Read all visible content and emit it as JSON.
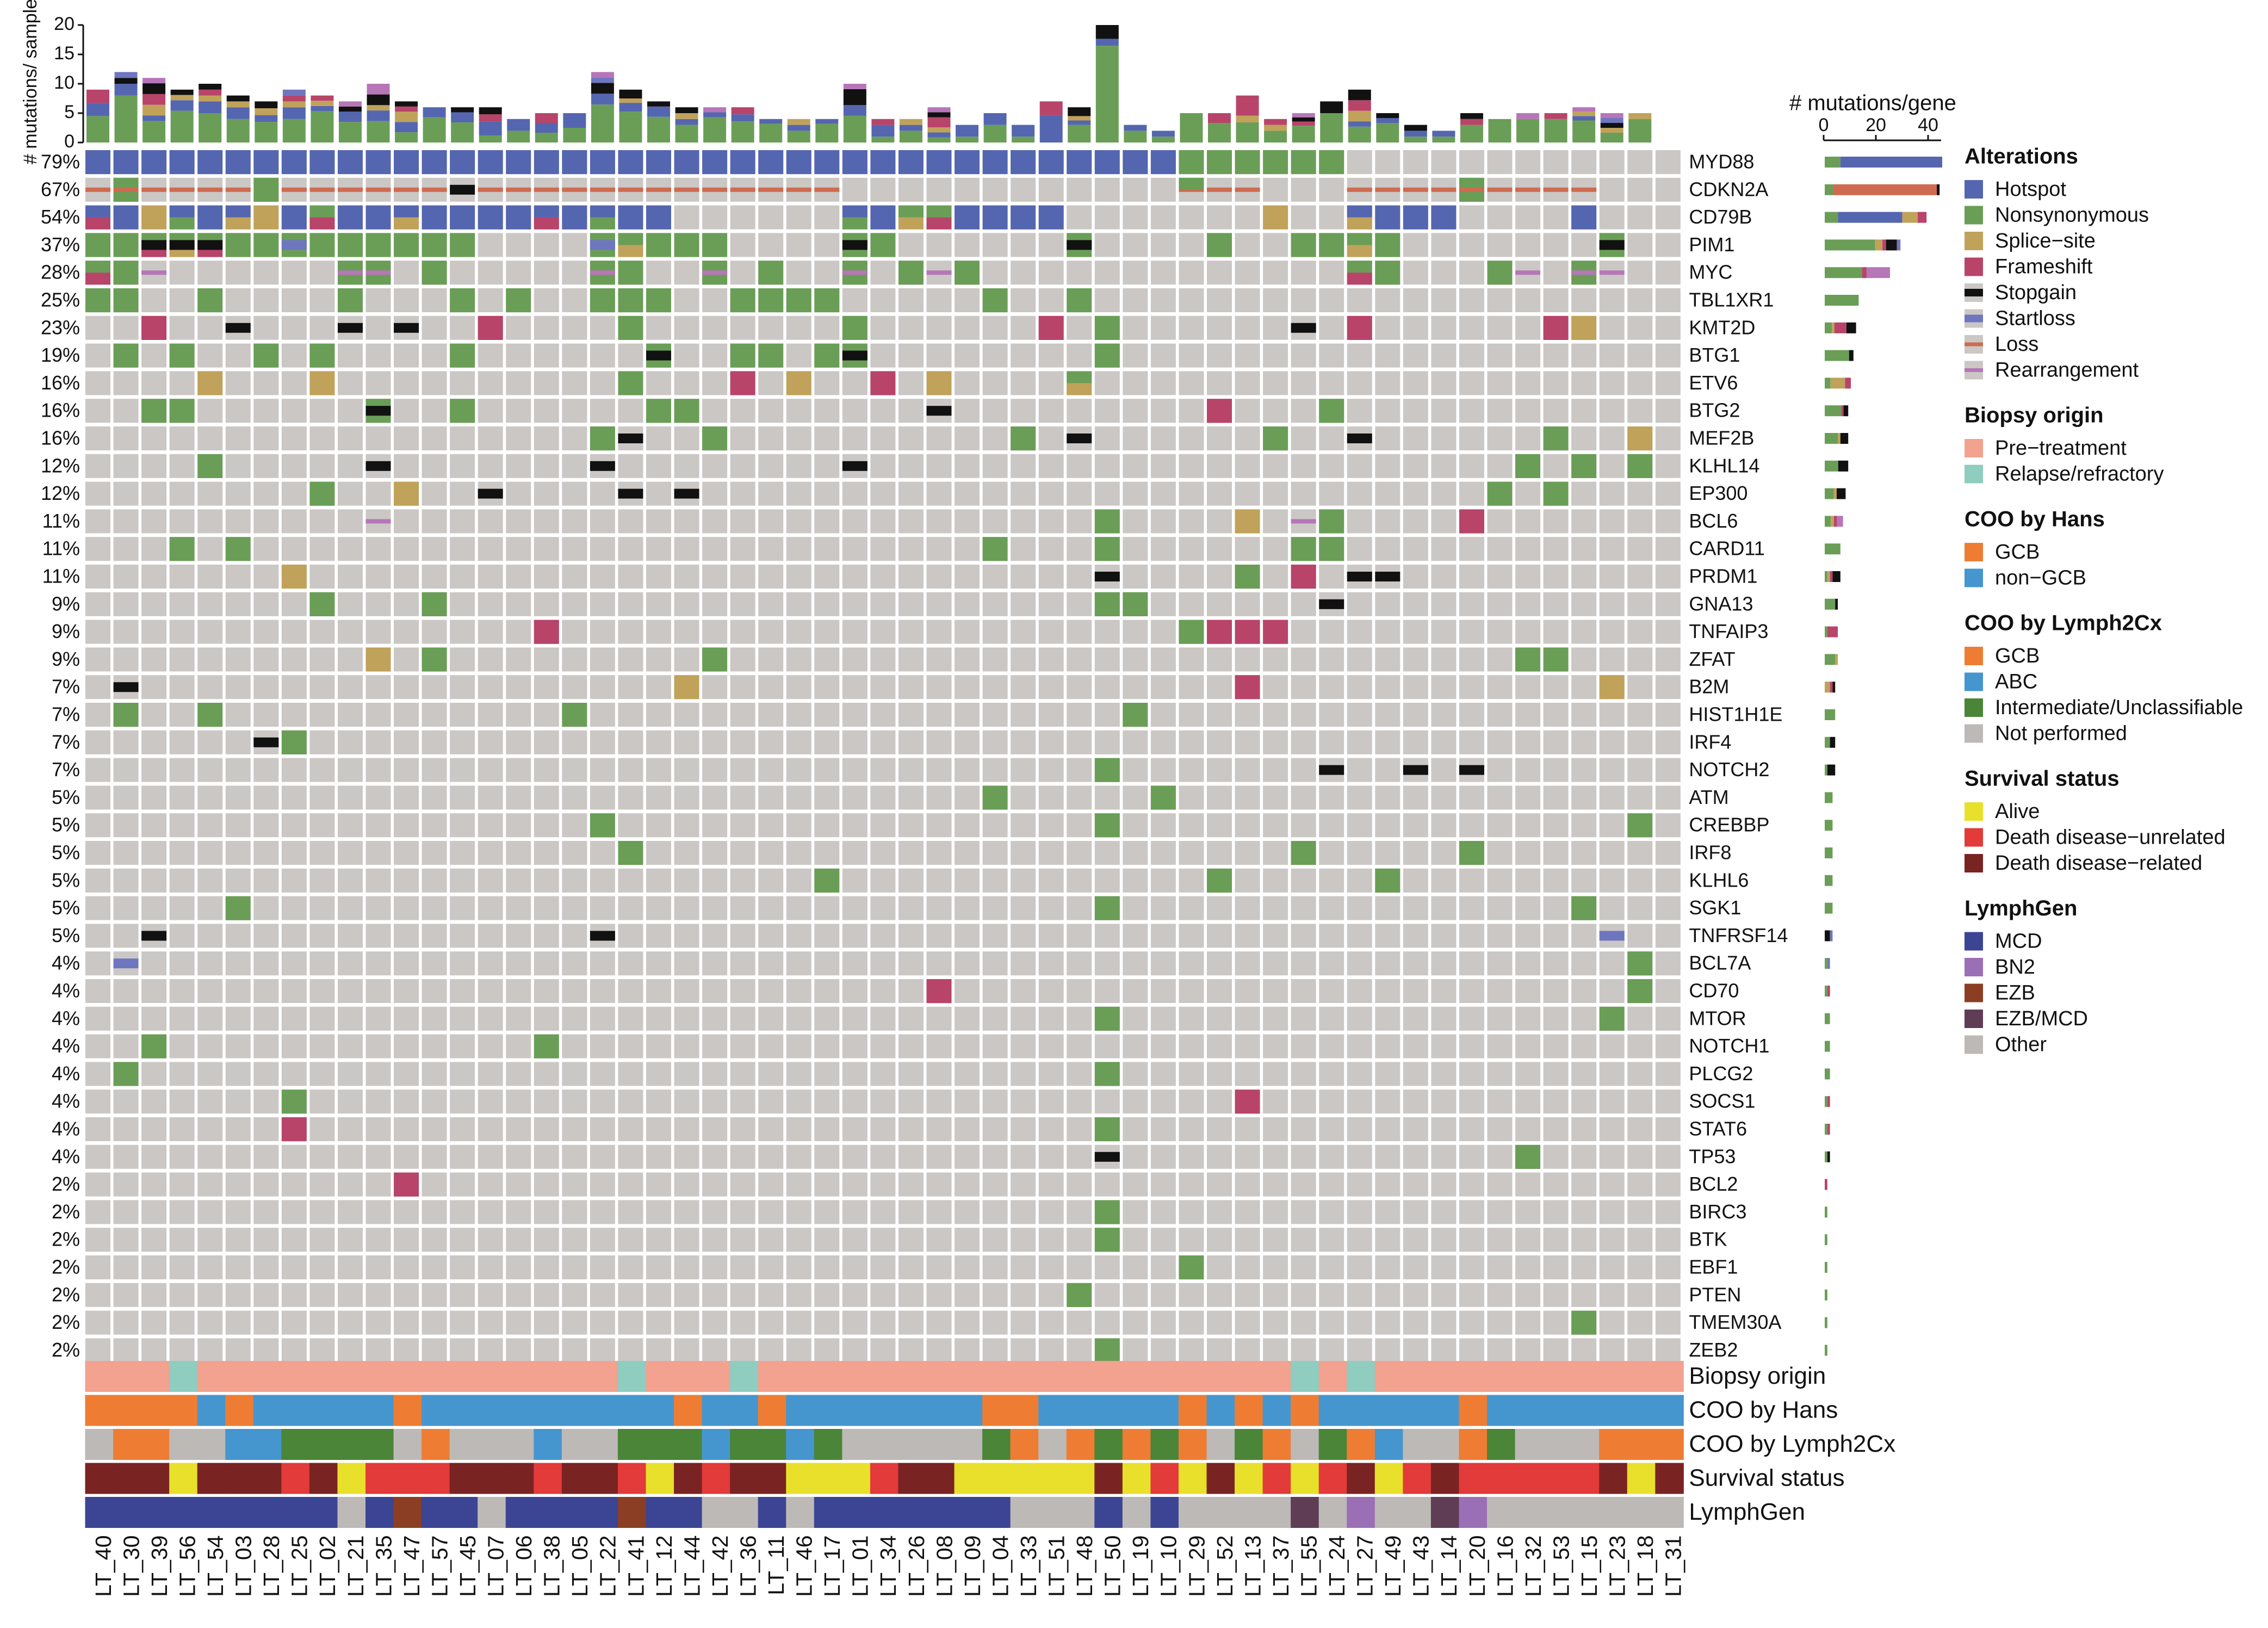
{
  "chart_data": {
    "type": "oncoprint",
    "title": "",
    "samples": [
      "LT_40",
      "LT_30",
      "LT_39",
      "LT_56",
      "LT_54",
      "LT_03",
      "LT_28",
      "LT_25",
      "LT_02",
      "LT_21",
      "LT_35",
      "LT_47",
      "LT_57",
      "LT_45",
      "LT_07",
      "LT_06",
      "LT_38",
      "LT_05",
      "LT_22",
      "LT_41",
      "LT_12",
      "LT_44",
      "LT_42",
      "LT_36",
      "LT_11",
      "LT_46",
      "LT_17",
      "LT_01",
      "LT_34",
      "LT_26",
      "LT_08",
      "LT_09",
      "LT_04",
      "LT_33",
      "LT_51",
      "LT_48",
      "LT_50",
      "LT_19",
      "LT_10",
      "LT_29",
      "LT_52",
      "LT_13",
      "LT_37",
      "LT_55",
      "LT_24",
      "LT_27",
      "LT_49",
      "LT_43",
      "LT_14",
      "LT_20",
      "LT_16",
      "LT_32",
      "LT_53",
      "LT_15",
      "LT_23",
      "LT_18",
      "LT_31"
    ],
    "genes": [
      "MYD88",
      "CDKN2A",
      "CD79B",
      "PIM1",
      "MYC",
      "TBL1XR1",
      "KMT2D",
      "BTG1",
      "ETV6",
      "BTG2",
      "MEF2B",
      "KLHL14",
      "EP300",
      "BCL6",
      "CARD11",
      "PRDM1",
      "GNA13",
      "TNFAIP3",
      "ZFAT",
      "B2M",
      "HIST1H1E",
      "IRF4",
      "NOTCH2",
      "ATM",
      "CREBBP",
      "IRF8",
      "KLHL6",
      "SGK1",
      "TNFRSF14",
      "BCL7A",
      "CD70",
      "MTOR",
      "NOTCH1",
      "PLCG2",
      "SOCS1",
      "STAT6",
      "TP53",
      "BCL2",
      "BIRC3",
      "BTK",
      "EBF1",
      "PTEN",
      "TMEM30A",
      "ZEB2"
    ],
    "percentages": [
      "79%",
      "67%",
      "54%",
      "37%",
      "28%",
      "25%",
      "23%",
      "19%",
      "16%",
      "16%",
      "16%",
      "12%",
      "12%",
      "11%",
      "11%",
      "11%",
      "9%",
      "9%",
      "9%",
      "7%",
      "7%",
      "7%",
      "7%",
      "5%",
      "5%",
      "5%",
      "5%",
      "5%",
      "5%",
      "4%",
      "4%",
      "4%",
      "4%",
      "4%",
      "4%",
      "4%",
      "4%",
      "2%",
      "2%",
      "2%",
      "2%",
      "2%",
      "2%",
      "2%"
    ],
    "alteration_types": [
      "Hotspot",
      "Nonsynonymous",
      "Splice-site",
      "Frameshift",
      "Stopgain",
      "Startloss",
      "Loss",
      "Rearrangement"
    ],
    "alteration_colors": {
      "H": "#5566b0",
      "N": "#6a9e57",
      "S": "#c0a25a",
      "F": "#b8446a",
      "G": "#111111",
      "T": "#6f76c0",
      "L": "#cf6b50",
      "R": "#b676b8"
    },
    "alterations": {
      "MYD88": {
        "H": [
          0,
          1,
          2,
          3,
          4,
          5,
          6,
          7,
          8,
          9,
          10,
          11,
          12,
          13,
          14,
          15,
          16,
          17,
          18,
          19,
          20,
          21,
          22,
          23,
          24,
          25,
          26,
          27,
          28,
          29,
          30,
          31,
          32,
          33,
          34,
          35,
          36,
          37,
          38
        ],
        "N": [
          39,
          40,
          41,
          42,
          43,
          44
        ]
      },
      "CDKN2A": {
        "L": [
          0,
          1,
          2,
          3,
          4,
          5,
          7,
          8,
          9,
          10,
          11,
          12,
          14,
          15,
          16,
          17,
          18,
          19,
          20,
          21,
          22,
          23,
          24,
          25,
          26,
          39,
          40,
          41,
          45,
          46,
          47,
          48,
          49,
          50,
          51,
          52,
          53
        ],
        "N": [
          1,
          6,
          49
        ],
        "G": [
          13
        ],
        "RN": [
          39
        ]
      },
      "CD79B": {
        "H": [
          0,
          1,
          3,
          4,
          5,
          7,
          9,
          10,
          11,
          12,
          13,
          14,
          15,
          16,
          17,
          18,
          19,
          20,
          27,
          28,
          31,
          32,
          33,
          34,
          45,
          46,
          47,
          48,
          53
        ],
        "F": [
          0,
          8,
          16,
          30
        ],
        "S": [
          2,
          5,
          6,
          11,
          29,
          42,
          45
        ],
        "N": [
          3,
          8,
          18,
          27,
          29,
          30
        ]
      },
      "PIM1": {
        "N": [
          0,
          1,
          2,
          3,
          4,
          5,
          6,
          7,
          8,
          9,
          10,
          11,
          12,
          13,
          18,
          19,
          20,
          21,
          22,
          27,
          28,
          35,
          40,
          43,
          44,
          45,
          46,
          54
        ],
        "G": [
          2,
          3,
          4,
          27,
          35,
          54
        ],
        "F": [
          2,
          4
        ],
        "S": [
          2,
          3,
          19,
          45
        ],
        "T": [
          7,
          18
        ]
      },
      "MYC": {
        "N": [
          0,
          1,
          9,
          10,
          12,
          18,
          19,
          22,
          24,
          27,
          29,
          31,
          45,
          46,
          50,
          53
        ],
        "R": [
          2,
          9,
          10,
          18,
          22,
          27,
          30,
          51,
          53,
          54
        ],
        "F": [
          0,
          45
        ]
      },
      "TBL1XR1": {
        "N": [
          0,
          1,
          4,
          9,
          13,
          15,
          18,
          19,
          20,
          23,
          24,
          25,
          26,
          32,
          35
        ]
      },
      "KMT2D": {
        "F": [
          2,
          14,
          34,
          45,
          52
        ],
        "G": [
          5,
          9,
          11,
          43
        ],
        "N": [
          19,
          27,
          36
        ],
        "S": [
          53
        ]
      },
      "BTG1": {
        "N": [
          1,
          3,
          6,
          8,
          13,
          20,
          23,
          24,
          26,
          27,
          36
        ],
        "G": [
          20,
          27
        ]
      },
      "ETV6": {
        "S": [
          4,
          8,
          25,
          30,
          35
        ],
        "N": [
          19,
          35
        ],
        "F": [
          23,
          28
        ]
      },
      "BTG2": {
        "N": [
          2,
          3,
          10,
          13,
          20,
          21,
          44
        ],
        "G": [
          10,
          30
        ],
        "F": [
          40
        ]
      },
      "MEF2B": {
        "N": [
          18,
          22,
          33,
          42,
          52
        ],
        "G": [
          19,
          35,
          45
        ],
        "S": [
          55
        ]
      },
      "KLHL14": {
        "N": [
          4,
          51,
          53,
          55
        ],
        "G": [
          10,
          18,
          27
        ]
      },
      "EP300": {
        "N": [
          8,
          50,
          52
        ],
        "S": [
          11
        ],
        "G": [
          14,
          19,
          21
        ]
      },
      "BCL6": {
        "N": [
          36,
          44
        ],
        "S": [
          41
        ],
        "R": [
          10,
          43
        ],
        "F": [
          49
        ]
      },
      "CARD11": {
        "N": [
          3,
          5,
          32,
          36,
          43,
          44
        ]
      },
      "PRDM1": {
        "S": [
          7
        ],
        "N": [
          41
        ],
        "G": [
          36,
          45,
          46
        ],
        "F": [
          43
        ]
      },
      "GNA13": {
        "N": [
          8,
          12,
          36,
          37
        ],
        "G": [
          44
        ]
      },
      "TNFAIP3": {
        "F": [
          16,
          40,
          41,
          42
        ],
        "N": [
          39
        ]
      },
      "ZFAT": {
        "S": [
          10
        ],
        "N": [
          12,
          22,
          51,
          52
        ]
      },
      "B2M": {
        "G": [
          1
        ],
        "S": [
          21,
          54
        ],
        "F": [
          41
        ]
      },
      "HIST1H1E": {
        "N": [
          1,
          4,
          17,
          37
        ]
      },
      "IRF4": {
        "G": [
          6
        ],
        "N": [
          7
        ]
      },
      "NOTCH2": {
        "N": [
          36
        ],
        "G": [
          44,
          47,
          49
        ]
      },
      "ATM": {
        "N": [
          32,
          38
        ]
      },
      "CREBBP": {
        "N": [
          18,
          36,
          55
        ]
      },
      "IRF8": {
        "N": [
          19,
          43,
          49
        ]
      },
      "KLHL6": {
        "N": [
          26,
          40,
          46
        ]
      },
      "SGK1": {
        "N": [
          5,
          36,
          53
        ]
      },
      "TNFRSF14": {
        "G": [
          2,
          18
        ],
        "T": [
          54
        ]
      },
      "BCL7A": {
        "T": [
          1
        ],
        "N": [
          55
        ]
      },
      "CD70": {
        "F": [
          30
        ],
        "N": [
          55
        ]
      },
      "MTOR": {
        "N": [
          36,
          54
        ]
      },
      "NOTCH1": {
        "N": [
          2,
          16
        ]
      },
      "PLCG2": {
        "N": [
          1,
          36
        ]
      },
      "SOCS1": {
        "N": [
          7
        ],
        "F": [
          41
        ]
      },
      "STAT6": {
        "F": [
          7
        ],
        "N": [
          36
        ]
      },
      "TP53": {
        "G": [
          36
        ],
        "N": [
          51
        ]
      },
      "BCL2": {
        "F": [
          11
        ]
      },
      "BIRC3": {
        "N": [
          36
        ]
      },
      "BTK": {
        "N": [
          36
        ]
      },
      "EBF1": {
        "N": [
          39
        ]
      },
      "PTEN": {
        "N": [
          35
        ]
      },
      "TMEM30A": {
        "N": [
          53
        ]
      },
      "ZEB2": {
        "N": [
          36
        ]
      }
    },
    "top_axis": {
      "label": "# mutations/ sample",
      "ticks": [
        "0",
        "5",
        "10",
        "15",
        "20"
      ],
      "range": [
        0,
        20
      ]
    },
    "mutations_per_sample": [
      9,
      12,
      11,
      9,
      10,
      8,
      7,
      9,
      8,
      7,
      10,
      7,
      6,
      6,
      6,
      4,
      5,
      5,
      12,
      9,
      7,
      6,
      6,
      6,
      4,
      4,
      4,
      10,
      4,
      4,
      6,
      3,
      5,
      3,
      7,
      6,
      20,
      3,
      2,
      5,
      5,
      8,
      4,
      5,
      7,
      9,
      5,
      3,
      2,
      5,
      4,
      5,
      5,
      6,
      5,
      5,
      0
    ],
    "right_axis": {
      "label": "# mutations/gene",
      "ticks": [
        "0",
        "20",
        "40"
      ],
      "range": [
        0,
        45
      ]
    },
    "mutations_per_gene": [
      45,
      44,
      39,
      29,
      25,
      13,
      12,
      11,
      10,
      9,
      9,
      9,
      8,
      7,
      6,
      6,
      5,
      5,
      5,
      4,
      4,
      4,
      4,
      3,
      3,
      3,
      3,
      3,
      3,
      2,
      2,
      2,
      2,
      2,
      2,
      2,
      2,
      1,
      1,
      1,
      1,
      1,
      1,
      1
    ],
    "annotation_tracks": [
      {
        "name": "Biopsy origin",
        "key": "biopsy"
      },
      {
        "name": "COO by Hans",
        "key": "hans"
      },
      {
        "name": "COO by Lymph2Cx",
        "key": "lymph2cx"
      },
      {
        "name": "Survival status",
        "key": "survival"
      },
      {
        "name": "LymphGen",
        "key": "lymphgen"
      }
    ],
    "annotation_values": {
      "biopsy": "PPPRPPPPPPPPPPPPPPPRPPPRPPPPPPPPPPPPPPPPPPPRPRPPPPPPPPPPP",
      "hans": "GGGGNGNNNNNGNNNNNNNNNGNNGNNNNNNNGGNNNNNGNGNGNNNNNGNNNNNNN",
      "lymph2cx": "XGGXXAAIIIIXGXXXAXXIIIAIIAIXXXXXIGXGIGIGXIGXIGAXXGIXXXGGG",
      "survival": "DDDADDDUDAUUUDDDUDDUADUDDAAAUDDAAAAADAUADAUAUDAUDUUUUUDAD",
      "lymphgen": "MMMMMMMMMOMEMMOMMMMEMMOOMOMMMMMMMOOOMOMOOOOXOBOOXBOOOOOOO"
    },
    "annotation_colors": {
      "biopsy": {
        "P": "#f2a28f",
        "R": "#8ecdbf"
      },
      "hans": {
        "G": "#ee7d33",
        "N": "#4596cf"
      },
      "lymph2cx": {
        "G": "#ee7d33",
        "A": "#4596cf",
        "I": "#4a8538",
        "X": "#bdb9b7"
      },
      "survival": {
        "A": "#e8e02a",
        "U": "#e33a3a",
        "D": "#7a2323"
      },
      "lymphgen": {
        "M": "#3c4494",
        "B": "#9b6fb5",
        "E": "#8b3e24",
        "X": "#5e3d55",
        "O": "#bdb9b7"
      }
    },
    "legend": [
      {
        "title": "Alterations",
        "items": [
          {
            "label": "Hotspot",
            "color": "#5566b0",
            "shape": "box"
          },
          {
            "label": "Nonsynonymous",
            "color": "#6a9e57",
            "shape": "box"
          },
          {
            "label": "Splice−site",
            "color": "#c0a25a",
            "shape": "box"
          },
          {
            "label": "Frameshift",
            "color": "#b8446a",
            "shape": "box"
          },
          {
            "label": "Stopgain",
            "color": "#111111",
            "shape": "bar"
          },
          {
            "label": "Startloss",
            "color": "#6f76c0",
            "shape": "bar"
          },
          {
            "label": "Loss",
            "color": "#cf6b50",
            "shape": "line"
          },
          {
            "label": "Rearrangement",
            "color": "#b676b8",
            "shape": "line"
          }
        ]
      },
      {
        "title": "Biopsy origin",
        "items": [
          {
            "label": "Pre−treatment",
            "color": "#f2a28f",
            "shape": "box"
          },
          {
            "label": "Relapse/refractory",
            "color": "#8ecdbf",
            "shape": "box"
          }
        ]
      },
      {
        "title": "COO by Hans",
        "items": [
          {
            "label": "GCB",
            "color": "#ee7d33",
            "shape": "box"
          },
          {
            "label": "non−GCB",
            "color": "#4596cf",
            "shape": "box"
          }
        ]
      },
      {
        "title": "COO by Lymph2Cx",
        "items": [
          {
            "label": "GCB",
            "color": "#ee7d33",
            "shape": "box"
          },
          {
            "label": "ABC",
            "color": "#4596cf",
            "shape": "box"
          },
          {
            "label": "Intermediate/Unclassifiable",
            "color": "#4a8538",
            "shape": "box"
          },
          {
            "label": "Not performed",
            "color": "#bdb9b7",
            "shape": "box"
          }
        ]
      },
      {
        "title": "Survival status",
        "items": [
          {
            "label": "Alive",
            "color": "#e8e02a",
            "shape": "box"
          },
          {
            "label": "Death disease−unrelated",
            "color": "#e33a3a",
            "shape": "box"
          },
          {
            "label": "Death disease−related",
            "color": "#7a2323",
            "shape": "box"
          }
        ]
      },
      {
        "title": "LymphGen",
        "items": [
          {
            "label": "MCD",
            "color": "#3c4494",
            "shape": "box"
          },
          {
            "label": "BN2",
            "color": "#9b6fb5",
            "shape": "box"
          },
          {
            "label": "EZB",
            "color": "#8b3e24",
            "shape": "box"
          },
          {
            "label": "EZB/MCD",
            "color": "#5e3d55",
            "shape": "box"
          },
          {
            "label": "Other",
            "color": "#bdb9b7",
            "shape": "box"
          }
        ]
      }
    ],
    "background_color": "#cbc7c5"
  }
}
